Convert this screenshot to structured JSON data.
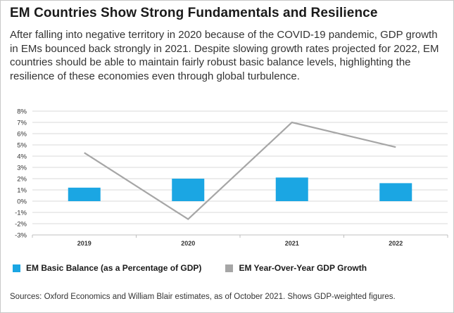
{
  "title": "EM Countries Show Strong Fundamentals and Resilience",
  "subtitle": "After falling into negative territory in 2020 because of the COVID-19 pandemic, GDP growth in EMs bounced back strongly in 2021. Despite slowing growth rates projected for 2022, EM countries should be able to maintain fairly robust basic balance levels, highlighting the resilience of these economies even through global turbulence.",
  "source": "Sources: Oxford Economics and William Blair estimates, as of October 2021. Shows GDP-weighted figures.",
  "colors": {
    "basic_balance": "#1ba6e3",
    "gdp_growth": "#a6a6a6",
    "grid": "#d9d9d9",
    "axis": "#bfbfbf"
  },
  "chart_data": {
    "type": "bar",
    "categories": [
      "2019",
      "2020",
      "2021",
      "2022"
    ],
    "series": [
      {
        "name": "EM Basic Balance (as a Percentage of GDP)",
        "type": "bar",
        "values": [
          1.2,
          2.0,
          2.1,
          1.6
        ]
      },
      {
        "name": "EM Year-Over-Year GDP Growth",
        "type": "line",
        "values": [
          4.3,
          -1.6,
          7.0,
          4.8
        ]
      }
    ],
    "ylim": [
      -3,
      8
    ],
    "yticks": [
      "8%",
      "7%",
      "6%",
      "5%",
      "4%",
      "3%",
      "2%",
      "1%",
      "0%",
      "-1%",
      "-2%",
      "-3%"
    ],
    "grid": true,
    "legend": "bottom-left",
    "xlabel": "",
    "ylabel": ""
  }
}
